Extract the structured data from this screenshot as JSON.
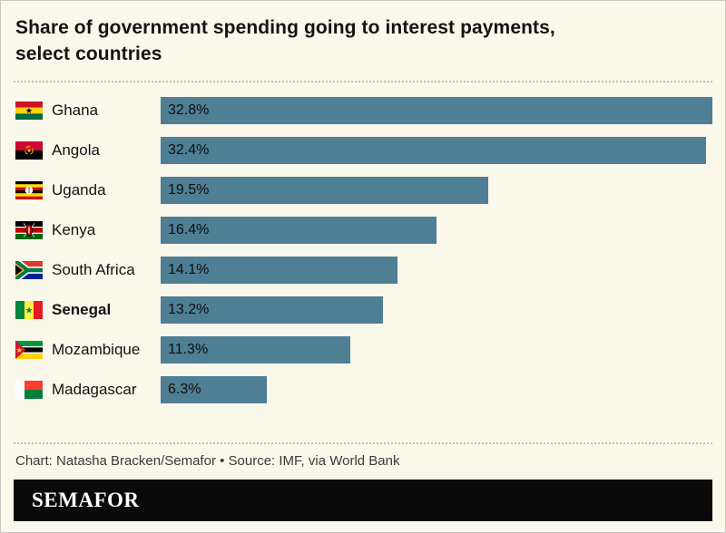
{
  "title": "Share of government spending going to interest payments, select countries",
  "footer": {
    "credit": "Chart: Natasha Bracken/Semafor • Source: IMF, via World Bank",
    "brand": "SEMAFOR"
  },
  "chart_data": {
    "type": "bar",
    "orientation": "horizontal",
    "title": "Share of government spending going to interest payments, select countries",
    "xlabel": "",
    "ylabel": "",
    "xlim": [
      0,
      32.8
    ],
    "bar_color": "#4e7f95",
    "background_color": "#faf7eb",
    "legend": false,
    "grid": false,
    "categories": [
      "Ghana",
      "Angola",
      "Uganda",
      "Kenya",
      "South Africa",
      "Senegal",
      "Mozambique",
      "Madagascar"
    ],
    "values": [
      32.8,
      32.4,
      19.5,
      16.4,
      14.1,
      13.2,
      11.3,
      6.3
    ],
    "rows": [
      {
        "country": "Ghana",
        "value": 32.8,
        "label": "32.8%",
        "flag": "ghana-flag-icon",
        "highlight": false
      },
      {
        "country": "Angola",
        "value": 32.4,
        "label": "32.4%",
        "flag": "angola-flag-icon",
        "highlight": false
      },
      {
        "country": "Uganda",
        "value": 19.5,
        "label": "19.5%",
        "flag": "uganda-flag-icon",
        "highlight": false
      },
      {
        "country": "Kenya",
        "value": 16.4,
        "label": "16.4%",
        "flag": "kenya-flag-icon",
        "highlight": false
      },
      {
        "country": "South Africa",
        "value": 14.1,
        "label": "14.1%",
        "flag": "south-africa-flag-icon",
        "highlight": false
      },
      {
        "country": "Senegal",
        "value": 13.2,
        "label": "13.2%",
        "flag": "senegal-flag-icon",
        "highlight": true
      },
      {
        "country": "Mozambique",
        "value": 11.3,
        "label": "11.3%",
        "flag": "mozambique-flag-icon",
        "highlight": false
      },
      {
        "country": "Madagascar",
        "value": 6.3,
        "label": "6.3%",
        "flag": "madagascar-flag-icon",
        "highlight": false
      }
    ]
  }
}
